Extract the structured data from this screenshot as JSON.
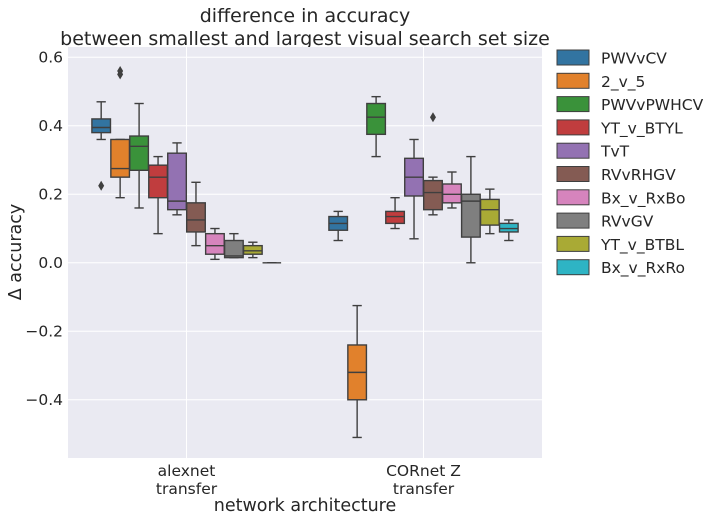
{
  "chart_data": {
    "type": "box",
    "title": [
      "difference in accuracy",
      "between smallest and largest visual search set size"
    ],
    "xlabel": "network architecture",
    "ylabel": "Δ accuracy",
    "ylim": [
      -0.57,
      0.63
    ],
    "yticks": [
      -0.4,
      -0.2,
      0.0,
      0.2,
      0.4,
      0.6
    ],
    "ytick_labels": [
      "−0.4",
      "−0.2",
      "0.0",
      "0.2",
      "0.4",
      "0.6"
    ],
    "categories": [
      {
        "label": [
          "alexnet",
          "transfer"
        ]
      },
      {
        "label": [
          "CORnet Z",
          "transfer"
        ]
      }
    ],
    "grid": true,
    "legend_position": "outside-right",
    "series": [
      {
        "name": "PWVvCV",
        "color": "#3274a1",
        "boxes": [
          {
            "q1": 0.38,
            "median": 0.395,
            "q3": 0.42,
            "whislo": 0.36,
            "whishi": 0.47,
            "fliers": [
              0.225
            ]
          },
          {
            "q1": 0.095,
            "median": 0.115,
            "q3": 0.135,
            "whislo": 0.065,
            "whishi": 0.15,
            "fliers": []
          }
        ]
      },
      {
        "name": "2_v_5",
        "color": "#e1812c",
        "boxes": [
          {
            "q1": 0.25,
            "median": 0.275,
            "q3": 0.36,
            "whislo": 0.19,
            "whishi": 0.36,
            "fliers": [
              0.55,
              0.56
            ]
          },
          {
            "q1": -0.4,
            "median": -0.32,
            "q3": -0.24,
            "whislo": -0.51,
            "whishi": -0.125,
            "fliers": []
          }
        ]
      },
      {
        "name": "PWVvPWHCV",
        "color": "#3a923a",
        "boxes": [
          {
            "q1": 0.27,
            "median": 0.34,
            "q3": 0.37,
            "whislo": 0.16,
            "whishi": 0.465,
            "fliers": []
          },
          {
            "q1": 0.375,
            "median": 0.425,
            "q3": 0.465,
            "whislo": 0.31,
            "whishi": 0.485,
            "fliers": []
          }
        ]
      },
      {
        "name": "YT_v_BTYL",
        "color": "#c03d3e",
        "boxes": [
          {
            "q1": 0.19,
            "median": 0.25,
            "q3": 0.285,
            "whislo": 0.085,
            "whishi": 0.31,
            "fliers": []
          },
          {
            "q1": 0.115,
            "median": 0.135,
            "q3": 0.15,
            "whislo": 0.1,
            "whishi": 0.19,
            "fliers": []
          }
        ]
      },
      {
        "name": "TvT",
        "color": "#9372b2",
        "boxes": [
          {
            "q1": 0.155,
            "median": 0.18,
            "q3": 0.32,
            "whislo": 0.14,
            "whishi": 0.35,
            "fliers": []
          },
          {
            "q1": 0.195,
            "median": 0.25,
            "q3": 0.305,
            "whislo": 0.07,
            "whishi": 0.36,
            "fliers": []
          }
        ]
      },
      {
        "name": "RVvRHGV",
        "color": "#845b53",
        "boxes": [
          {
            "q1": 0.09,
            "median": 0.125,
            "q3": 0.175,
            "whislo": 0.05,
            "whishi": 0.235,
            "fliers": []
          },
          {
            "q1": 0.155,
            "median": 0.205,
            "q3": 0.24,
            "whislo": 0.14,
            "whishi": 0.25,
            "fliers": [
              0.425
            ]
          }
        ]
      },
      {
        "name": "Bx_v_RxBo",
        "color": "#d684bd",
        "boxes": [
          {
            "q1": 0.025,
            "median": 0.05,
            "q3": 0.085,
            "whislo": 0.01,
            "whishi": 0.1,
            "fliers": []
          },
          {
            "q1": 0.175,
            "median": 0.2,
            "q3": 0.23,
            "whislo": 0.16,
            "whishi": 0.265,
            "fliers": []
          }
        ]
      },
      {
        "name": "RVvGV",
        "color": "#7f7f7f",
        "boxes": [
          {
            "q1": 0.015,
            "median": 0.02,
            "q3": 0.065,
            "whislo": 0.015,
            "whishi": 0.085,
            "fliers": []
          },
          {
            "q1": 0.075,
            "median": 0.18,
            "q3": 0.2,
            "whislo": 0.0,
            "whishi": 0.31,
            "fliers": []
          }
        ]
      },
      {
        "name": "YT_v_BTBL",
        "color": "#a9aa35",
        "boxes": [
          {
            "q1": 0.025,
            "median": 0.035,
            "q3": 0.05,
            "whislo": 0.015,
            "whishi": 0.06,
            "fliers": []
          },
          {
            "q1": 0.11,
            "median": 0.155,
            "q3": 0.185,
            "whislo": 0.085,
            "whishi": 0.215,
            "fliers": []
          }
        ]
      },
      {
        "name": "Bx_v_RxRo",
        "color": "#2eb4c4",
        "boxes": [
          {
            "q1": 0.0,
            "median": 0.0,
            "q3": 0.0,
            "whislo": 0.0,
            "whishi": 0.0,
            "fliers": []
          },
          {
            "q1": 0.09,
            "median": 0.1,
            "q3": 0.115,
            "whislo": 0.065,
            "whishi": 0.125,
            "fliers": []
          }
        ]
      }
    ]
  }
}
